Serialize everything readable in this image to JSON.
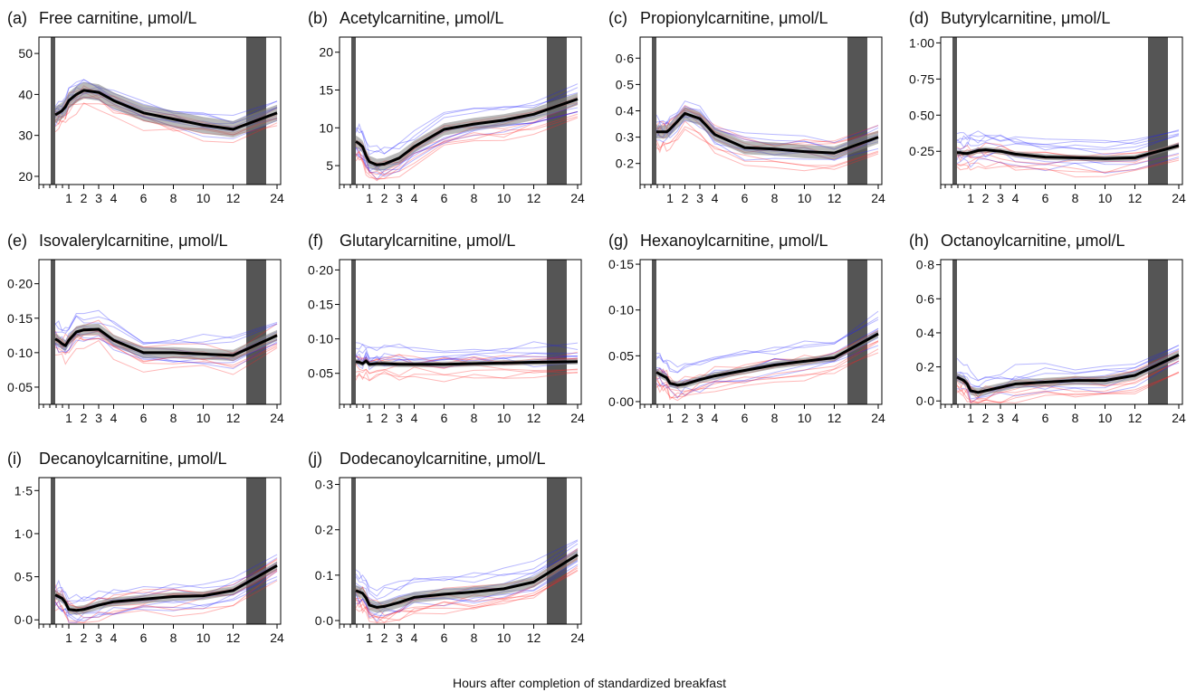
{
  "figure": {
    "xlabel": "Hours after completion of standardized breakfast",
    "colors": {
      "group_a": "#ff2020",
      "group_b": "#2020ff",
      "mean": "#000000",
      "band": "#7f7f7f",
      "bar": "#555555"
    }
  },
  "chart_data": [
    {
      "type": "line",
      "label": "(a)",
      "title": "Free carnitine, μmol/L",
      "x": [
        0,
        0.25,
        0.5,
        0.75,
        1,
        1.5,
        2,
        3,
        4,
        6,
        8,
        10,
        12,
        24
      ],
      "x_ticks": [
        "1",
        "2",
        "3",
        "4",
        "6",
        "8",
        "10",
        "12",
        "24"
      ],
      "y_ticks": [
        "20",
        "30",
        "40",
        "50"
      ],
      "ylim": [
        18,
        54
      ],
      "mean": [
        35.0,
        35.5,
        36.0,
        37.0,
        38.5,
        40.0,
        41.0,
        40.5,
        38.5,
        35.5,
        34.0,
        32.5,
        31.5,
        35.5
      ],
      "ci_halfwidth": 2.0
    },
    {
      "type": "line",
      "label": "(b)",
      "title": "Acetylcarnitine, μmol/L",
      "x": [
        0,
        0.25,
        0.5,
        0.75,
        1,
        1.5,
        2,
        3,
        4,
        6,
        8,
        10,
        12,
        24
      ],
      "x_ticks": [
        "1",
        "2",
        "3",
        "4",
        "6",
        "8",
        "10",
        "12",
        "24"
      ],
      "y_ticks": [
        "5",
        "10",
        "15",
        "20"
      ],
      "ylim": [
        2.5,
        22
      ],
      "mean": [
        8.2,
        7.9,
        7.5,
        6.3,
        5.5,
        5.1,
        5.2,
        6.0,
        7.5,
        9.8,
        10.5,
        11.0,
        11.8,
        13.8
      ],
      "ci_halfwidth": 0.8
    },
    {
      "type": "line",
      "label": "(c)",
      "title": "Propionylcarnitine, μmol/L",
      "x": [
        0,
        0.25,
        0.5,
        0.75,
        1,
        1.5,
        2,
        3,
        4,
        6,
        8,
        10,
        12,
        24
      ],
      "x_ticks": [
        "1",
        "2",
        "3",
        "4",
        "6",
        "8",
        "10",
        "12",
        "24"
      ],
      "y_ticks": [
        "0·2",
        "0·3",
        "0·4",
        "0·5",
        "0·6"
      ],
      "ylim": [
        0.12,
        0.68
      ],
      "mean": [
        0.32,
        0.32,
        0.32,
        0.32,
        0.33,
        0.36,
        0.39,
        0.37,
        0.31,
        0.26,
        0.255,
        0.245,
        0.24,
        0.3
      ],
      "ci_halfwidth": 0.025
    },
    {
      "type": "line",
      "label": "(d)",
      "title": "Butyrylcarnitine, μmol/L",
      "x": [
        0,
        0.25,
        0.5,
        0.75,
        1,
        1.5,
        2,
        3,
        4,
        6,
        8,
        10,
        12,
        24
      ],
      "x_ticks": [
        "1",
        "2",
        "3",
        "4",
        "6",
        "8",
        "10",
        "12",
        "24"
      ],
      "y_ticks": [
        "0·25",
        "0·50",
        "0·75",
        "1·00"
      ],
      "ylim": [
        0.02,
        1.04
      ],
      "mean": [
        0.24,
        0.24,
        0.235,
        0.235,
        0.24,
        0.255,
        0.26,
        0.25,
        0.23,
        0.21,
        0.205,
        0.2,
        0.205,
        0.29
      ],
      "ci_halfwidth": 0.02
    },
    {
      "type": "line",
      "label": "(e)",
      "title": "Isovalerylcarnitine, μmol/L",
      "x": [
        0,
        0.25,
        0.5,
        0.75,
        1,
        1.5,
        2,
        3,
        4,
        6,
        8,
        10,
        12,
        24
      ],
      "x_ticks": [
        "1",
        "2",
        "3",
        "4",
        "6",
        "8",
        "10",
        "12",
        "24"
      ],
      "y_ticks": [
        "0·05",
        "0·10",
        "0·15",
        "0·20"
      ],
      "ylim": [
        0.025,
        0.235
      ],
      "mean": [
        0.12,
        0.117,
        0.113,
        0.11,
        0.118,
        0.13,
        0.133,
        0.134,
        0.118,
        0.1,
        0.1,
        0.098,
        0.096,
        0.125
      ],
      "ci_halfwidth": 0.008
    },
    {
      "type": "line",
      "label": "(f)",
      "title": "Glutarylcarnitine, μmol/L",
      "x": [
        0,
        0.25,
        0.5,
        0.75,
        1,
        1.5,
        2,
        3,
        4,
        6,
        8,
        10,
        12,
        24
      ],
      "x_ticks": [
        "1",
        "2",
        "3",
        "4",
        "6",
        "8",
        "10",
        "12",
        "24"
      ],
      "y_ticks": [
        "0·05",
        "0·10",
        "0·15",
        "0·20"
      ],
      "ylim": [
        0.005,
        0.215
      ],
      "mean": [
        0.067,
        0.066,
        0.064,
        0.068,
        0.063,
        0.064,
        0.064,
        0.063,
        0.063,
        0.063,
        0.064,
        0.065,
        0.066,
        0.067
      ],
      "ci_halfwidth": 0.004
    },
    {
      "type": "line",
      "label": "(g)",
      "title": "Hexanoylcarnitine, μmol/L",
      "x": [
        0,
        0.25,
        0.5,
        0.75,
        1,
        1.5,
        2,
        3,
        4,
        6,
        8,
        10,
        12,
        24
      ],
      "x_ticks": [
        "1",
        "2",
        "3",
        "4",
        "6",
        "8",
        "10",
        "12",
        "24"
      ],
      "y_ticks": [
        "0·00",
        "0·05",
        "0·10",
        "0·15"
      ],
      "ylim": [
        -0.003,
        0.155
      ],
      "mean": [
        0.032,
        0.03,
        0.028,
        0.026,
        0.02,
        0.018,
        0.019,
        0.024,
        0.028,
        0.034,
        0.04,
        0.044,
        0.048,
        0.074
      ],
      "ci_halfwidth": 0.004
    },
    {
      "type": "line",
      "label": "(h)",
      "title": "Octanoylcarnitine, μmol/L",
      "x": [
        0,
        0.25,
        0.5,
        0.75,
        1,
        1.5,
        2,
        3,
        4,
        6,
        8,
        10,
        12,
        24
      ],
      "x_ticks": [
        "1",
        "2",
        "3",
        "4",
        "6",
        "8",
        "10",
        "12",
        "24"
      ],
      "y_ticks": [
        "0·0",
        "0·2",
        "0·4",
        "0·6",
        "0·8"
      ],
      "ylim": [
        -0.02,
        0.83
      ],
      "mean": [
        0.14,
        0.13,
        0.12,
        0.1,
        0.06,
        0.05,
        0.06,
        0.08,
        0.1,
        0.11,
        0.12,
        0.12,
        0.15,
        0.27
      ],
      "ci_halfwidth": 0.025
    },
    {
      "type": "line",
      "label": "(i)",
      "title": "Decanoylcarnitine, μmol/L",
      "x": [
        0,
        0.25,
        0.5,
        0.75,
        1,
        1.5,
        2,
        3,
        4,
        6,
        8,
        10,
        12,
        24
      ],
      "x_ticks": [
        "1",
        "2",
        "3",
        "4",
        "6",
        "8",
        "10",
        "12",
        "24"
      ],
      "y_ticks": [
        "0·0",
        "0·5",
        "1·0",
        "1·5"
      ],
      "ylim": [
        -0.05,
        1.65
      ],
      "mean": [
        0.29,
        0.27,
        0.25,
        0.2,
        0.12,
        0.11,
        0.12,
        0.17,
        0.21,
        0.24,
        0.27,
        0.28,
        0.34,
        0.63
      ],
      "ci_halfwidth": 0.05
    },
    {
      "type": "line",
      "label": "(j)",
      "title": "Dodecanoylcarnitine, μmol/L",
      "x": [
        0,
        0.25,
        0.5,
        0.75,
        1,
        1.5,
        2,
        3,
        4,
        6,
        8,
        10,
        12,
        24
      ],
      "x_ticks": [
        "1",
        "2",
        "3",
        "4",
        "6",
        "8",
        "10",
        "12",
        "24"
      ],
      "y_ticks": [
        "0·0",
        "0·1",
        "0·2",
        "0·3"
      ],
      "ylim": [
        -0.008,
        0.315
      ],
      "mean": [
        0.066,
        0.063,
        0.06,
        0.05,
        0.034,
        0.029,
        0.031,
        0.04,
        0.051,
        0.058,
        0.063,
        0.07,
        0.085,
        0.145
      ],
      "ci_halfwidth": 0.012
    }
  ]
}
